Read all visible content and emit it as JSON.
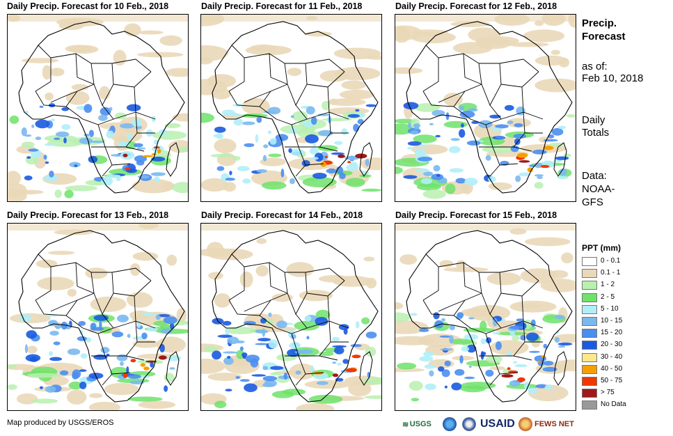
{
  "panels": [
    {
      "title": "Daily Precip. Forecast for 10 Feb., 2018"
    },
    {
      "title": "Daily Precip. Forecast for 11 Feb., 2018"
    },
    {
      "title": "Daily Precip. Forecast for 12 Feb., 2018"
    },
    {
      "title": "Daily Precip. Forecast for 13 Feb., 2018"
    },
    {
      "title": "Daily Precip. Forecast for 14 Feb., 2018"
    },
    {
      "title": "Daily Precip. Forecast for 15 Feb., 2018"
    }
  ],
  "sidebar": {
    "title_line1": "Precip.",
    "title_line2": "Forecast",
    "asof_label": "as of:",
    "asof_date": "Feb 10, 2018",
    "totals_line1": "Daily",
    "totals_line2": "Totals",
    "data_label": "Data:",
    "data_line1": "NOAA-",
    "data_line2": "GFS"
  },
  "legend": {
    "title": "PPT (mm)",
    "items": [
      {
        "label": "0 - 0.1",
        "color": "#ffffff"
      },
      {
        "label": "0.1 - 1",
        "color": "#ead8b8"
      },
      {
        "label": "1 - 2",
        "color": "#b8f0b0"
      },
      {
        "label": "2 - 5",
        "color": "#6fe26a"
      },
      {
        "label": "5 - 10",
        "color": "#b0eef8"
      },
      {
        "label": "10 - 15",
        "color": "#7ab8f0"
      },
      {
        "label": "15 - 20",
        "color": "#4a8ef0"
      },
      {
        "label": "20 - 30",
        "color": "#1a5ae0"
      },
      {
        "label": "30 - 40",
        "color": "#fce88a"
      },
      {
        "label": "40 - 50",
        "color": "#f5a000"
      },
      {
        "label": "50 - 75",
        "color": "#f03800"
      },
      {
        "label": "> 75",
        "color": "#a01818"
      },
      {
        "label": "No Data",
        "color": "#999999"
      }
    ]
  },
  "footer": {
    "credit": "Map produced by USGS/EROS",
    "logos": {
      "usgs": "USGS",
      "usaid": "USAID",
      "fewsnet": "FEWS NET"
    }
  }
}
